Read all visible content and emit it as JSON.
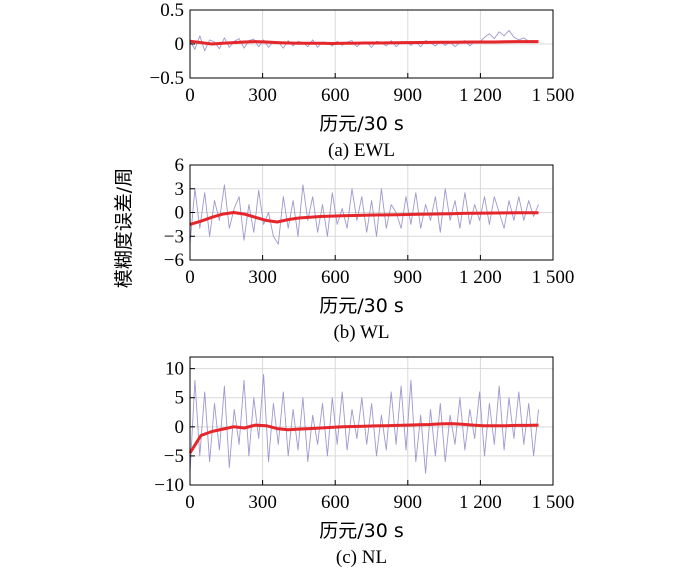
{
  "figure": {
    "shared_ylabel": "模糊度误差/周"
  },
  "chart_data": [
    {
      "type": "line",
      "caption": "(a) EWL",
      "xlabel": "历元/30 s",
      "xlim": [
        0,
        1500
      ],
      "ylim": [
        -0.5,
        0.5
      ],
      "x_ticks": [
        "0",
        "300",
        "600",
        "900",
        "1 200",
        "1 500"
      ],
      "y_ticks": [
        "0.5",
        "0",
        "−0.5"
      ],
      "grid": true,
      "series_colors": [
        "#8f86c6",
        "#e5262b"
      ],
      "series": [
        {
          "role": "raw_error",
          "x_range": [
            0,
            1440
          ],
          "values": [
            0.05,
            -0.08,
            0.12,
            -0.1,
            0.06,
            0.03,
            -0.07,
            0.09,
            -0.05,
            0.04,
            0.08,
            -0.06,
            0.05,
            0.07,
            -0.04,
            0.06,
            -0.05,
            0.04,
            0.03,
            -0.06,
            0.05,
            -0.03,
            0.04,
            0.02,
            -0.04,
            0.06,
            -0.05,
            0.03,
            0.02,
            -0.03,
            0.04,
            -0.02,
            0.03,
            0.05,
            -0.04,
            0.02,
            0.03,
            -0.05,
            0.04,
            0.02,
            -0.03,
            0.05,
            -0.04,
            0.03,
            0.04,
            -0.02,
            0.03,
            -0.04,
            0.05,
            0.02,
            -0.03,
            0.04,
            -0.02,
            0.03,
            -0.04,
            0.02,
            0.05,
            -0.03,
            0.04,
            0.02,
            0.1,
            0.15,
            0.08,
            0.18,
            0.12,
            0.2,
            0.1,
            0.06,
            0.09,
            0.04,
            0.05,
            0.02
          ]
        },
        {
          "role": "mean_error",
          "x_range": [
            0,
            1440
          ],
          "values": [
            0.04,
            0.02,
            0.0,
            0.01,
            0.02,
            0.03,
            0.035,
            0.03,
            0.02,
            0.015,
            0.01,
            0.012,
            0.01,
            0.008,
            0.01,
            0.012,
            0.014,
            0.015,
            0.016,
            0.018,
            0.02,
            0.022,
            0.024,
            0.025,
            0.026,
            0.028,
            0.03,
            0.03,
            0.03,
            0.032,
            0.035,
            0.035,
            0.035
          ]
        }
      ]
    },
    {
      "type": "line",
      "caption": "(b) WL",
      "xlabel": "历元/30 s",
      "xlim": [
        0,
        1500
      ],
      "ylim": [
        -6,
        6
      ],
      "x_ticks": [
        "0",
        "300",
        "600",
        "900",
        "1 200",
        "1 500"
      ],
      "y_ticks": [
        "6",
        "3",
        "0",
        "−3",
        "−6"
      ],
      "grid": true,
      "series_colors": [
        "#8f86c6",
        "#e5262b"
      ],
      "series": [
        {
          "role": "raw_error",
          "x_range": [
            0,
            1440
          ],
          "values": [
            -4,
            3,
            -2,
            2.5,
            -3,
            1.5,
            -1,
            3.5,
            -2,
            0.5,
            2,
            -3.5,
            1,
            -2.5,
            2.8,
            -1.5,
            0,
            -3,
            -4,
            2,
            -2,
            1.5,
            -3,
            3.5,
            -1,
            2,
            -2.5,
            1,
            -3,
            2.5,
            -1.5,
            0.5,
            -2,
            3,
            -1,
            2,
            -2.5,
            1.5,
            -3,
            3,
            -2,
            1,
            0,
            -2,
            2,
            -1.5,
            2.5,
            -2,
            1,
            -1,
            2,
            -2.5,
            3,
            -1,
            1.5,
            -2,
            2.5,
            -1.5,
            1,
            -1,
            2,
            -1.5,
            2,
            0,
            -2,
            1.5,
            -1,
            2,
            -1,
            1.5,
            -0.5,
            1
          ]
        },
        {
          "role": "mean_error",
          "x_range": [
            0,
            1440
          ],
          "values": [
            -1.5,
            -1.1,
            -0.6,
            -0.2,
            0.0,
            -0.2,
            -0.6,
            -1.0,
            -1.2,
            -0.9,
            -0.7,
            -0.6,
            -0.5,
            -0.45,
            -0.4,
            -0.38,
            -0.35,
            -0.32,
            -0.3,
            -0.28,
            -0.25,
            -0.22,
            -0.2,
            -0.18,
            -0.15,
            -0.12,
            -0.1,
            -0.08,
            -0.06,
            -0.05,
            -0.04,
            -0.03,
            -0.02
          ]
        }
      ]
    },
    {
      "type": "line",
      "caption": "(c) NL",
      "xlabel": "历元/30 s",
      "xlim": [
        0,
        1500
      ],
      "ylim": [
        -10,
        12
      ],
      "x_ticks": [
        "0",
        "300",
        "600",
        "900",
        "1 200",
        "1 500"
      ],
      "y_ticks": [
        "10",
        "5",
        "0",
        "−5",
        "−10"
      ],
      "grid": true,
      "series_colors": [
        "#8f86c6",
        "#e5262b"
      ],
      "series": [
        {
          "role": "raw_error",
          "x_range": [
            0,
            1440
          ],
          "values": [
            -8,
            8,
            -5,
            6,
            -6,
            4,
            -4,
            7,
            -7,
            3,
            -3,
            8,
            -5,
            5,
            -2,
            9,
            -6,
            4,
            -3,
            6,
            -5,
            3,
            -4,
            5,
            -6,
            2,
            -3,
            4,
            -5,
            5,
            -3,
            6,
            -4,
            3,
            -2,
            5,
            -3,
            4,
            -5,
            2,
            -4,
            6,
            -3,
            7,
            -4,
            8,
            -6,
            2,
            -8,
            3,
            -5,
            4,
            -6,
            2,
            -3,
            5,
            -4,
            3,
            -2,
            6,
            -5,
            4,
            -3,
            7,
            -4,
            5,
            -2,
            6,
            -3,
            4,
            -5,
            3
          ]
        },
        {
          "role": "mean_error",
          "x_range": [
            0,
            1440
          ],
          "values": [
            -4.5,
            -1.5,
            -0.8,
            -0.4,
            0.0,
            -0.2,
            0.3,
            0.2,
            -0.3,
            -0.5,
            -0.4,
            -0.3,
            -0.2,
            -0.1,
            0.0,
            0.05,
            0.1,
            0.15,
            0.2,
            0.25,
            0.3,
            0.35,
            0.4,
            0.5,
            0.55,
            0.45,
            0.3,
            0.2,
            0.2,
            0.2,
            0.25,
            0.25,
            0.3
          ]
        }
      ]
    }
  ]
}
